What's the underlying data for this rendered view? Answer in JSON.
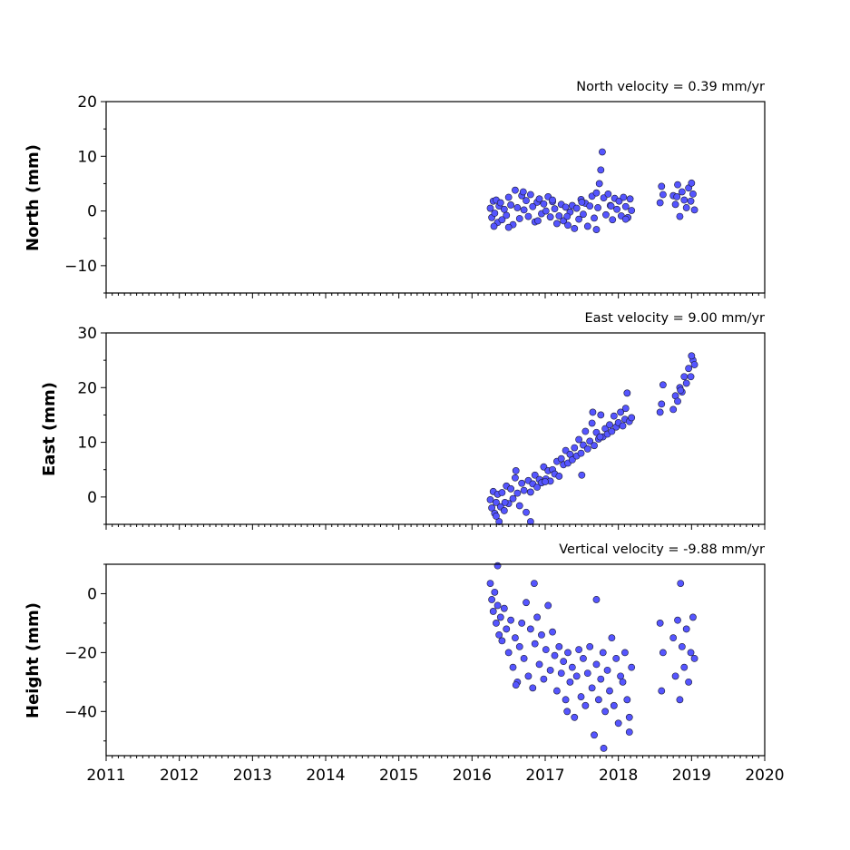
{
  "chart_data": [
    {
      "type": "scatter",
      "title": "North velocity = 0.39 mm/yr",
      "ylabel": "North (mm)",
      "xlabel": "",
      "xlim": [
        2011,
        2020
      ],
      "ylim": [
        -15,
        20
      ],
      "yticks": [
        -10,
        0,
        10,
        20
      ],
      "yticklabels": [
        "−10",
        "0",
        "10",
        "20"
      ],
      "marker_color": "#5555ff",
      "marker_edge": "#1a1a33",
      "series": [
        {
          "x": [
            2016.25,
            2016.27,
            2016.29,
            2016.31,
            2016.33,
            2016.35,
            2016.37,
            2016.39,
            2016.41,
            2016.44,
            2016.47,
            2016.5,
            2016.53,
            2016.56,
            2016.59,
            2016.62,
            2016.65,
            2016.68,
            2016.71,
            2016.74,
            2016.77,
            2016.8,
            2016.83,
            2016.86,
            2016.89,
            2016.92,
            2016.95,
            2016.98,
            2017.01,
            2017.04,
            2017.07,
            2017.1,
            2017.13,
            2017.16,
            2017.19,
            2017.22,
            2017.25,
            2017.28,
            2017.31,
            2017.34,
            2017.37,
            2017.4,
            2017.43,
            2017.46,
            2017.49,
            2017.52,
            2017.55,
            2017.58,
            2017.61,
            2017.64,
            2017.67,
            2017.7,
            2017.72,
            2017.74,
            2017.76,
            2017.78,
            2017.8,
            2017.83,
            2017.86,
            2017.89,
            2017.92,
            2017.95,
            2017.98,
            2018.01,
            2018.04,
            2018.07,
            2018.1,
            2018.13,
            2018.16,
            2018.18,
            2018.57,
            2018.59,
            2018.61,
            2018.75,
            2018.78,
            2018.81,
            2018.84,
            2018.87,
            2018.9,
            2018.93,
            2018.96,
            2018.99,
            2019.02,
            2019.04,
            2016.3,
            2016.5,
            2016.7,
            2016.9,
            2017.1,
            2017.3,
            2017.5,
            2017.7,
            2017.9,
            2018.1,
            2018.8,
            2019.0
          ],
          "y": [
            0.5,
            -1.2,
            1.8,
            -0.4,
            2.0,
            -2.1,
            0.9,
            1.5,
            -1.6,
            0.3,
            -0.8,
            2.5,
            1.1,
            -2.5,
            3.8,
            0.6,
            -1.4,
            2.8,
            0.2,
            1.9,
            -1.0,
            3.0,
            0.8,
            -2.0,
            1.6,
            2.2,
            -0.5,
            1.3,
            0.0,
            2.6,
            -1.1,
            1.7,
            0.4,
            -2.3,
            -0.9,
            1.2,
            -1.8,
            0.7,
            -2.6,
            -0.2,
            1.0,
            -3.2,
            0.5,
            -1.5,
            2.1,
            -0.6,
            1.4,
            -2.8,
            0.9,
            2.7,
            -1.3,
            3.3,
            0.6,
            5.0,
            7.5,
            10.8,
            2.4,
            -0.7,
            3.1,
            1.0,
            -1.6,
            2.3,
            0.3,
            1.8,
            -0.9,
            2.5,
            0.8,
            -1.2,
            2.2,
            0.1,
            1.5,
            4.5,
            3.0,
            2.8,
            1.2,
            4.8,
            -1.0,
            3.5,
            2.0,
            0.6,
            4.2,
            1.8,
            3.1,
            0.2,
            -2.8,
            -3.0,
            3.5,
            -1.8,
            2.0,
            -1.0,
            1.6,
            -3.4,
            0.9,
            -1.5,
            2.6,
            5.1
          ]
        }
      ]
    },
    {
      "type": "scatter",
      "title": "East velocity = 9.00 mm/yr",
      "ylabel": "East (mm)",
      "xlabel": "",
      "xlim": [
        2011,
        2020
      ],
      "ylim": [
        -5,
        30
      ],
      "yticks": [
        0,
        10,
        20,
        30
      ],
      "yticklabels": [
        "0",
        "10",
        "20",
        "30"
      ],
      "marker_color": "#5555ff",
      "marker_edge": "#1a1a33",
      "series": [
        {
          "x": [
            2016.25,
            2016.27,
            2016.29,
            2016.31,
            2016.33,
            2016.35,
            2016.37,
            2016.39,
            2016.41,
            2016.44,
            2016.47,
            2016.5,
            2016.53,
            2016.56,
            2016.59,
            2016.62,
            2016.65,
            2016.68,
            2016.71,
            2016.74,
            2016.77,
            2016.8,
            2016.83,
            2016.86,
            2016.89,
            2016.92,
            2016.95,
            2016.98,
            2017.01,
            2017.04,
            2017.07,
            2017.1,
            2017.13,
            2017.16,
            2017.19,
            2017.22,
            2017.25,
            2017.28,
            2017.31,
            2017.34,
            2017.37,
            2017.4,
            2017.43,
            2017.46,
            2017.49,
            2017.52,
            2017.55,
            2017.58,
            2017.61,
            2017.64,
            2017.67,
            2017.7,
            2017.73,
            2017.76,
            2017.79,
            2017.82,
            2017.85,
            2017.88,
            2017.91,
            2017.94,
            2017.97,
            2018.0,
            2018.03,
            2018.06,
            2018.09,
            2018.12,
            2018.15,
            2018.18,
            2018.57,
            2018.59,
            2018.61,
            2018.75,
            2018.78,
            2018.81,
            2018.84,
            2018.87,
            2018.9,
            2018.93,
            2018.96,
            2018.99,
            2019.02,
            2019.04,
            2016.33,
            2016.45,
            2016.6,
            2016.8,
            2017.0,
            2017.5,
            2017.65,
            2017.75,
            2018.1,
            2018.85,
            2019.0
          ],
          "y": [
            -0.5,
            -2.0,
            1.0,
            -3.0,
            -1.0,
            0.5,
            -4.5,
            -1.8,
            0.8,
            -2.5,
            2.0,
            -1.2,
            1.5,
            -0.3,
            3.5,
            0.7,
            -1.6,
            2.5,
            1.2,
            -2.8,
            3.0,
            0.9,
            2.4,
            4.0,
            1.8,
            3.2,
            2.6,
            5.5,
            3.3,
            4.8,
            2.9,
            5.0,
            4.2,
            6.5,
            3.8,
            7.0,
            5.9,
            8.5,
            6.2,
            7.8,
            6.8,
            9.0,
            7.5,
            10.5,
            8.0,
            9.5,
            12.0,
            8.8,
            10.2,
            13.5,
            9.4,
            11.8,
            10.6,
            15.0,
            11.0,
            12.5,
            11.5,
            13.2,
            12.0,
            14.8,
            12.8,
            13.6,
            15.5,
            13.0,
            14.2,
            19.0,
            13.8,
            14.5,
            15.5,
            17.0,
            20.5,
            16.0,
            18.5,
            17.5,
            20.0,
            19.2,
            22.0,
            20.8,
            23.5,
            22.0,
            25.0,
            24.2,
            -3.5,
            -1.0,
            4.8,
            -4.5,
            2.8,
            4.0,
            15.5,
            11.0,
            16.2,
            19.5,
            25.8
          ]
        }
      ]
    },
    {
      "type": "scatter",
      "title": "Vertical velocity = -9.88 mm/yr",
      "ylabel": "Height (mm)",
      "xlabel": "",
      "xlim": [
        2011,
        2020
      ],
      "ylim": [
        -55,
        10
      ],
      "yticks": [
        -40,
        -20,
        0
      ],
      "yticklabels": [
        "−40",
        "−20",
        "0"
      ],
      "xticks": [
        2011,
        2012,
        2013,
        2014,
        2015,
        2016,
        2017,
        2018,
        2019,
        2020
      ],
      "xticklabels": [
        "2011",
        "2012",
        "2013",
        "2014",
        "2015",
        "2016",
        "2017",
        "2018",
        "2019",
        "2020"
      ],
      "marker_color": "#5555ff",
      "marker_edge": "#1a1a33",
      "series": [
        {
          "x": [
            2016.25,
            2016.27,
            2016.29,
            2016.31,
            2016.33,
            2016.35,
            2016.37,
            2016.39,
            2016.41,
            2016.44,
            2016.47,
            2016.5,
            2016.53,
            2016.56,
            2016.59,
            2016.62,
            2016.65,
            2016.68,
            2016.71,
            2016.74,
            2016.77,
            2016.8,
            2016.83,
            2016.86,
            2016.89,
            2016.92,
            2016.95,
            2016.98,
            2017.01,
            2017.04,
            2017.07,
            2017.1,
            2017.13,
            2017.16,
            2017.19,
            2017.22,
            2017.25,
            2017.28,
            2017.31,
            2017.34,
            2017.37,
            2017.4,
            2017.43,
            2017.46,
            2017.49,
            2017.52,
            2017.55,
            2017.58,
            2017.61,
            2017.64,
            2017.67,
            2017.7,
            2017.73,
            2017.76,
            2017.79,
            2017.82,
            2017.85,
            2017.88,
            2017.91,
            2017.94,
            2017.97,
            2018.0,
            2018.03,
            2018.06,
            2018.09,
            2018.12,
            2018.15,
            2018.18,
            2018.57,
            2018.59,
            2018.61,
            2018.75,
            2018.78,
            2018.81,
            2018.84,
            2018.87,
            2018.9,
            2018.93,
            2018.96,
            2018.99,
            2019.02,
            2019.04,
            2016.35,
            2016.85,
            2017.7,
            2017.8,
            2018.15,
            2018.85,
            2016.6,
            2017.3
          ],
          "y": [
            3.5,
            -2.0,
            -6.0,
            0.5,
            -10.0,
            -4.0,
            -14.0,
            -8.0,
            -16.0,
            -5.0,
            -12.0,
            -20.0,
            -9.0,
            -25.0,
            -15.0,
            -30.0,
            -18.0,
            -10.0,
            -22.0,
            -3.0,
            -28.0,
            -12.0,
            -32.0,
            -17.0,
            -8.0,
            -24.0,
            -14.0,
            -29.0,
            -19.0,
            -4.0,
            -26.0,
            -13.0,
            -21.0,
            -33.0,
            -18.0,
            -27.0,
            -23.0,
            -36.0,
            -20.0,
            -30.0,
            -25.0,
            -42.0,
            -28.0,
            -19.0,
            -35.0,
            -22.0,
            -38.0,
            -27.0,
            -18.0,
            -32.0,
            -48.0,
            -24.0,
            -36.0,
            -29.0,
            -20.0,
            -40.0,
            -26.0,
            -33.0,
            -15.0,
            -38.0,
            -22.0,
            -44.0,
            -28.0,
            -30.0,
            -20.0,
            -36.0,
            -42.0,
            -25.0,
            -10.0,
            -33.0,
            -20.0,
            -15.0,
            -28.0,
            -9.0,
            -36.0,
            -18.0,
            -25.0,
            -12.0,
            -30.0,
            -20.0,
            -8.0,
            -22.0,
            9.5,
            3.5,
            -2.0,
            -52.5,
            -47.0,
            3.5,
            -31.0,
            -40.0
          ]
        }
      ]
    }
  ]
}
